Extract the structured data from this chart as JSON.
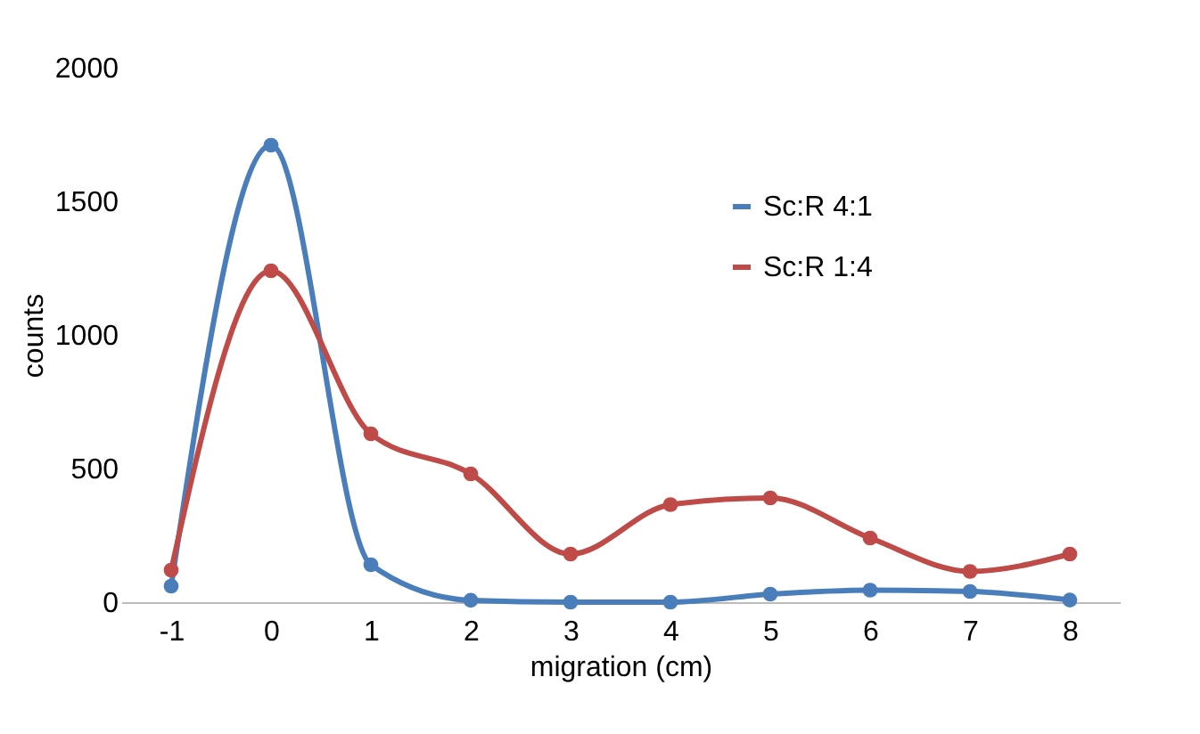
{
  "chart_data": {
    "type": "line",
    "xlabel": "migration (cm)",
    "ylabel": "counts",
    "categories": [
      "-1",
      "0",
      "1",
      "2",
      "3",
      "4",
      "5",
      "6",
      "7",
      "8"
    ],
    "series": [
      {
        "name": "Sc:R 4:1",
        "color": "#4a7ebb",
        "values": [
          60,
          1710,
          140,
          7,
          0,
          0,
          30,
          45,
          40,
          8
        ]
      },
      {
        "name": "Sc:R 1:4",
        "color": "#be4b48",
        "values": [
          120,
          1240,
          630,
          480,
          180,
          365,
          390,
          240,
          115,
          180
        ]
      }
    ],
    "ylim": [
      0,
      2000
    ],
    "yticks": [
      0,
      500,
      1000,
      1500,
      2000
    ],
    "grid": false,
    "legend": "top right",
    "marker": "circle",
    "line_style": "solid"
  }
}
